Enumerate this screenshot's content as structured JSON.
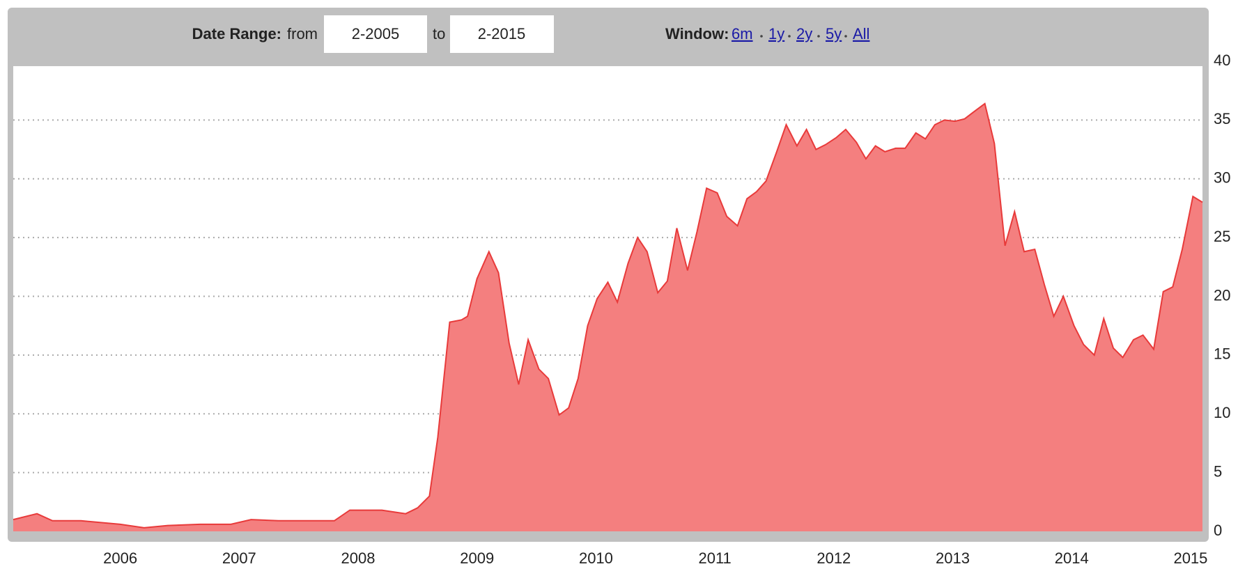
{
  "header": {
    "date_range_label": "Date Range:",
    "from_label": "from",
    "from_value": "2-2005",
    "to_label": "to",
    "to_value": "2-2015",
    "window_label": "Window:",
    "window_links": [
      "6m",
      "1y",
      "2y",
      "5y",
      "All"
    ]
  },
  "chart_data": {
    "type": "area",
    "color": "#f47f7f",
    "line_color": "#e83a3a",
    "grid": true,
    "x": [
      2005.1,
      2005.3,
      2005.43,
      2005.67,
      2006,
      2006.2,
      2006.4,
      2006.67,
      2006.93,
      2007.1,
      2007.33,
      2007.8,
      2007.93,
      2008.2,
      2008.4,
      2008.5,
      2008.6,
      2008.67,
      2008.77,
      2008.87,
      2008.92,
      2009,
      2009.1,
      2009.18,
      2009.27,
      2009.35,
      2009.43,
      2009.52,
      2009.6,
      2009.69,
      2009.77,
      2009.85,
      2009.93,
      2010.01,
      2010.1,
      2010.18,
      2010.27,
      2010.35,
      2010.43,
      2010.52,
      2010.6,
      2010.68,
      2010.77,
      2010.85,
      2010.93,
      2011.02,
      2011.1,
      2011.19,
      2011.27,
      2011.35,
      2011.43,
      2011.52,
      2011.6,
      2011.69,
      2011.77,
      2011.85,
      2011.93,
      2012.02,
      2012.1,
      2012.19,
      2012.27,
      2012.35,
      2012.43,
      2012.52,
      2012.6,
      2012.69,
      2012.77,
      2012.85,
      2012.93,
      2013.02,
      2013.1,
      2013.19,
      2013.27,
      2013.35,
      2013.44,
      2013.52,
      2013.6,
      2013.69,
      2013.77,
      2013.85,
      2013.93,
      2014.02,
      2014.1,
      2014.19,
      2014.27,
      2014.35,
      2014.43,
      2014.52,
      2014.6,
      2014.69,
      2014.77,
      2014.85,
      2014.93,
      2015.02,
      2015.1
    ],
    "values": [
      1,
      1.5,
      0.9,
      0.9,
      0.6,
      0.3,
      0.5,
      0.6,
      0.6,
      1,
      0.9,
      0.9,
      1.8,
      1.8,
      1.5,
      2,
      3,
      8,
      17.8,
      18,
      18.3,
      21.5,
      23.8,
      22,
      16,
      12.5,
      16.3,
      13.8,
      13,
      9.9,
      10.5,
      13,
      17.5,
      19.8,
      21.2,
      19.5,
      22.8,
      25,
      23.8,
      20.3,
      21.3,
      25.8,
      22.2,
      25.5,
      29.2,
      28.8,
      26.8,
      26,
      28.3,
      28.9,
      29.8,
      32.3,
      34.6,
      32.8,
      34.2,
      32.5,
      32.9,
      33.5,
      34.2,
      33.1,
      31.7,
      32.8,
      32.3,
      32.6,
      32.6,
      33.9,
      33.4,
      34.6,
      35,
      34.9,
      35.1,
      35.8,
      36.4,
      33,
      24.3,
      27.2,
      23.8,
      24,
      21,
      18.3,
      20,
      17.5,
      15.9,
      15,
      18.1,
      15.6,
      14.8,
      16.3,
      16.7,
      15.5,
      20.4,
      20.8,
      24,
      28.5,
      28
    ],
    "xlim": [
      2005.1,
      2015.1
    ],
    "xticks": [
      2006,
      2007,
      2008,
      2009,
      2010,
      2011,
      2012,
      2013,
      2014,
      2015
    ],
    "ylim": [
      0,
      40
    ],
    "yticks": [
      0,
      5,
      10,
      15,
      20,
      25,
      30,
      35,
      40
    ]
  }
}
